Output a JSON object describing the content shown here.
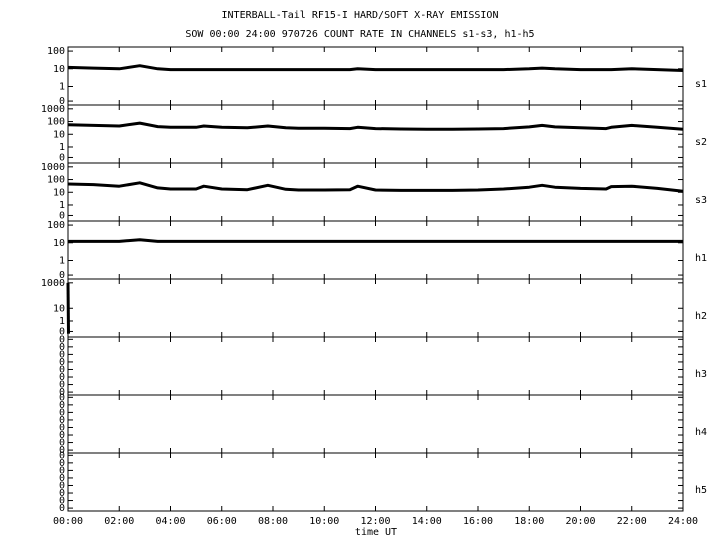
{
  "chart_data": [
    {
      "type": "line",
      "title": "INTERBALL-Tail RF15-I HARD/SOFT X-RAY EMISSION",
      "subtitle": "SOW 00:00 24:00 970726  COUNT RATE IN CHANNELS s1-s3, h1-h5",
      "channel": "s1",
      "yscale": "log",
      "xlim": [
        0,
        24
      ],
      "ylim": [
        0.09,
        170
      ],
      "yticks": [
        100,
        10,
        1,
        {
          "value": 0.15,
          "label": "0"
        }
      ],
      "x": [
        0,
        1,
        2,
        2.8,
        3.5,
        4,
        5,
        5.3,
        6,
        7,
        7.8,
        8.5,
        9,
        10,
        11,
        11.3,
        12,
        13,
        14,
        15,
        16,
        17,
        18,
        18.5,
        19,
        20,
        21,
        21.2,
        22,
        23,
        24
      ],
      "series": [
        {
          "color": "#000000",
          "values": [
            12,
            11,
            10,
            15,
            10,
            9,
            9,
            9,
            9,
            9,
            9,
            9,
            9,
            9,
            9,
            10,
            9,
            9,
            9,
            9,
            9,
            9,
            10,
            11,
            10,
            9,
            9,
            9,
            10,
            9,
            8
          ]
        }
      ]
    },
    {
      "type": "line",
      "channel": "s2",
      "yscale": "log",
      "xlim": [
        0,
        24
      ],
      "ylim": [
        0.055,
        2000
      ],
      "yticks": [
        1000,
        100,
        10,
        1,
        {
          "value": 0.15,
          "label": "0"
        }
      ],
      "x": [
        0,
        1,
        2,
        2.8,
        3.5,
        4,
        5,
        5.3,
        6,
        7,
        7.8,
        8.5,
        9,
        10,
        11,
        11.3,
        12,
        13,
        14,
        15,
        16,
        17,
        18,
        18.5,
        19,
        20,
        21,
        21.2,
        22,
        23,
        24
      ],
      "series": [
        {
          "color": "#000000",
          "values": [
            55,
            50,
            45,
            75,
            40,
            35,
            35,
            45,
            35,
            32,
            45,
            32,
            30,
            30,
            28,
            35,
            28,
            26,
            25,
            25,
            26,
            28,
            38,
            50,
            38,
            32,
            28,
            35,
            50,
            35,
            25
          ]
        }
      ]
    },
    {
      "type": "line",
      "channel": "s3",
      "yscale": "log",
      "xlim": [
        0,
        24
      ],
      "ylim": [
        0.055,
        2000
      ],
      "yticks": [
        1000,
        100,
        10,
        1,
        {
          "value": 0.15,
          "label": "0"
        }
      ],
      "x": [
        0,
        1,
        2,
        2.8,
        3.5,
        4,
        5,
        5.3,
        6,
        7,
        7.8,
        8.5,
        9,
        10,
        11,
        11.3,
        12,
        13,
        14,
        15,
        16,
        17,
        18,
        18.5,
        19,
        20,
        21,
        21.2,
        22,
        23,
        24
      ],
      "series": [
        {
          "color": "#000000",
          "values": [
            45,
            40,
            30,
            55,
            22,
            18,
            18,
            30,
            18,
            16,
            35,
            17,
            15,
            15,
            16,
            30,
            15,
            14,
            14,
            14,
            15,
            18,
            25,
            35,
            25,
            20,
            18,
            28,
            30,
            20,
            12
          ]
        }
      ]
    },
    {
      "type": "line",
      "channel": "h1",
      "yscale": "log",
      "xlim": [
        0,
        24
      ],
      "ylim": [
        0.09,
        170
      ],
      "yticks": [
        100,
        10,
        1,
        {
          "value": 0.15,
          "label": "0"
        }
      ],
      "x": [
        0,
        1,
        2,
        2.8,
        3.5,
        4,
        5,
        5.3,
        6,
        7,
        7.8,
        8.5,
        9,
        10,
        11,
        11.3,
        12,
        13,
        14,
        15,
        16,
        17,
        18,
        18.5,
        19,
        20,
        21,
        21.2,
        22,
        23,
        24
      ],
      "series": [
        {
          "color": "#000000",
          "values": [
            12,
            12,
            12,
            15,
            12,
            12,
            12,
            12,
            12,
            12,
            12,
            12,
            12,
            12,
            12,
            12,
            12,
            12,
            12,
            12,
            12,
            12,
            12,
            12,
            12,
            12,
            12,
            12,
            12,
            12,
            12
          ]
        }
      ]
    },
    {
      "type": "line",
      "channel": "h2",
      "yscale": "log",
      "xlim": [
        0,
        24
      ],
      "ylim": [
        0.055,
        2000
      ],
      "yticks": [
        1000,
        10,
        1,
        {
          "value": 0.15,
          "label": "0"
        }
      ],
      "x": [
        0,
        0.02
      ],
      "series": [
        {
          "color": "#000000",
          "values": [
            1000,
            0.1
          ]
        }
      ]
    },
    {
      "type": "line",
      "channel": "h3",
      "yscale": "linear",
      "xlim": [
        0,
        24
      ],
      "ylim": [
        0,
        1
      ],
      "yticks": [
        {
          "value": 0.05,
          "label": "0"
        },
        {
          "value": 0.18,
          "label": "0"
        },
        {
          "value": 0.31,
          "label": "0"
        },
        {
          "value": 0.44,
          "label": "0"
        },
        {
          "value": 0.57,
          "label": "0"
        },
        {
          "value": 0.7,
          "label": "0"
        },
        {
          "value": 0.83,
          "label": "0"
        },
        {
          "value": 0.96,
          "label": "0"
        }
      ]
    },
    {
      "type": "line",
      "channel": "h4",
      "yscale": "linear",
      "xlim": [
        0,
        24
      ],
      "ylim": [
        0,
        1
      ],
      "yticks": [
        {
          "value": 0.05,
          "label": "0"
        },
        {
          "value": 0.18,
          "label": "0"
        },
        {
          "value": 0.31,
          "label": "0"
        },
        {
          "value": 0.44,
          "label": "0"
        },
        {
          "value": 0.57,
          "label": "0"
        },
        {
          "value": 0.7,
          "label": "0"
        },
        {
          "value": 0.83,
          "label": "0"
        },
        {
          "value": 0.96,
          "label": "0"
        }
      ]
    },
    {
      "type": "line",
      "channel": "h5",
      "yscale": "linear",
      "xlim": [
        0,
        24
      ],
      "ylim": [
        0,
        1
      ],
      "x_label": "time UT",
      "yticks": [
        {
          "value": 0.05,
          "label": "0"
        },
        {
          "value": 0.18,
          "label": "0"
        },
        {
          "value": 0.31,
          "label": "0"
        },
        {
          "value": 0.44,
          "label": "0"
        },
        {
          "value": 0.57,
          "label": "0"
        },
        {
          "value": 0.7,
          "label": "0"
        },
        {
          "value": 0.83,
          "label": "0"
        },
        {
          "value": 0.96,
          "label": "0"
        }
      ],
      "xticks": [
        {
          "value": 0,
          "label": "00:00"
        },
        {
          "value": 2,
          "label": "02:00"
        },
        {
          "value": 4,
          "label": "04:00"
        },
        {
          "value": 6,
          "label": "06:00"
        },
        {
          "value": 8,
          "label": "08:00"
        },
        {
          "value": 10,
          "label": "10:00"
        },
        {
          "value": 12,
          "label": "12:00"
        },
        {
          "value": 14,
          "label": "14:00"
        },
        {
          "value": 16,
          "label": "16:00"
        },
        {
          "value": 18,
          "label": "18:00"
        },
        {
          "value": 20,
          "label": "20:00"
        },
        {
          "value": 22,
          "label": "22:00"
        },
        {
          "value": 24,
          "label": "24:00"
        }
      ]
    }
  ]
}
